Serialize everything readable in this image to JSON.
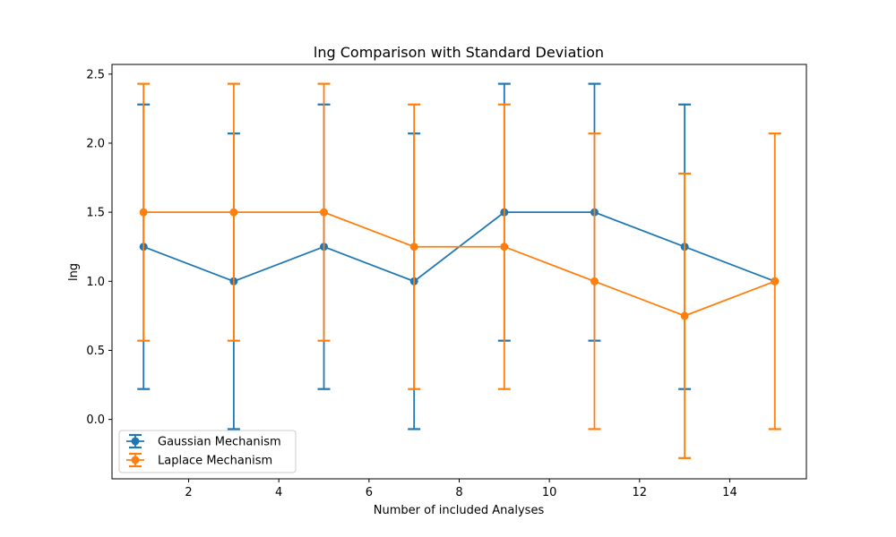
{
  "chart_data": {
    "type": "line",
    "title": "lng Comparison with Standard Deviation",
    "xlabel": "Number of included Analyses",
    "ylabel": "lng",
    "x": [
      1,
      3,
      5,
      7,
      9,
      11,
      13,
      15
    ],
    "xlim": [
      0.3,
      15.7
    ],
    "ylim": [
      -0.43,
      2.57
    ],
    "xticks": [
      2,
      4,
      6,
      8,
      10,
      12,
      14
    ],
    "yticks": [
      0.0,
      0.5,
      1.0,
      1.5,
      2.0,
      2.5
    ],
    "ytick_labels": [
      "0.0",
      "0.5",
      "1.0",
      "1.5",
      "2.0",
      "2.5"
    ],
    "legend_position": "lower-left",
    "grid": false,
    "series": [
      {
        "name": "Gaussian Mechanism",
        "color": "#1f77b4",
        "values": [
          1.25,
          1.0,
          1.25,
          1.0,
          1.5,
          1.5,
          1.25,
          1.0
        ],
        "error": [
          1.03,
          1.07,
          1.03,
          1.07,
          0.93,
          0.93,
          1.03,
          0.0
        ]
      },
      {
        "name": "Laplace Mechanism",
        "color": "#ff7f0e",
        "values": [
          1.5,
          1.5,
          1.5,
          1.25,
          1.25,
          1.0,
          0.75,
          1.0
        ],
        "error": [
          0.93,
          0.93,
          0.93,
          1.03,
          1.03,
          1.07,
          1.03,
          1.07
        ]
      }
    ]
  }
}
